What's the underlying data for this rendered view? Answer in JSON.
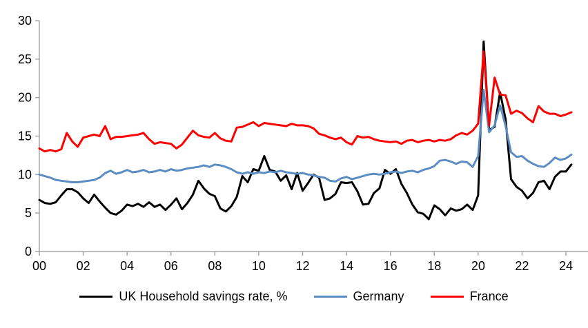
{
  "chart_data": {
    "type": "line",
    "title": "",
    "xlabel": "",
    "ylabel": "",
    "ylim": [
      0,
      30
    ],
    "y_ticks": [
      0,
      5,
      10,
      15,
      20,
      25,
      30
    ],
    "y_tick_labels": [
      "0",
      "5",
      "10",
      "15",
      "20",
      "25",
      "30"
    ],
    "x_tick_labels": [
      "00",
      "02",
      "04",
      "06",
      "08",
      "10",
      "12",
      "14",
      "16",
      "18",
      "20",
      "22",
      "24"
    ],
    "x_tick_step_years": 2,
    "x_start_year": 2000,
    "points_per_year": 4,
    "grid": "off",
    "legend_position": "bottom",
    "axis_color": "#a6a6a6",
    "text_color": "#000000",
    "series": [
      {
        "name": "UK Household savings rate, %",
        "color": "#000000",
        "values": [
          6.7,
          6.3,
          6.2,
          6.4,
          7.3,
          8.1,
          8.1,
          7.7,
          6.9,
          6.3,
          7.4,
          6.5,
          5.7,
          5.0,
          4.8,
          5.3,
          6.1,
          5.9,
          6.2,
          5.8,
          6.4,
          5.8,
          6.1,
          5.4,
          6.1,
          6.9,
          5.5,
          6.3,
          7.4,
          9.2,
          8.2,
          7.5,
          7.2,
          5.6,
          5.2,
          5.9,
          7.1,
          9.8,
          9.0,
          10.7,
          10.5,
          12.4,
          10.6,
          10.4,
          9.2,
          9.9,
          8.1,
          10.2,
          7.9,
          8.9,
          10.0,
          9.6,
          6.7,
          6.9,
          7.5,
          9.0,
          8.9,
          9.0,
          7.8,
          6.1,
          6.2,
          7.6,
          8.2,
          10.6,
          10.1,
          10.7,
          8.8,
          7.6,
          6.1,
          5.1,
          4.9,
          4.2,
          6.0,
          5.5,
          4.7,
          5.6,
          5.3,
          5.5,
          6.1,
          5.4,
          7.3,
          27.3,
          15.8,
          16.2,
          20.7,
          17.2,
          9.4,
          8.4,
          7.9,
          6.9,
          7.6,
          9.0,
          9.2,
          8.1,
          9.7,
          10.4,
          10.4,
          11.3
        ]
      },
      {
        "name": "Germany",
        "color": "#5b8dc3",
        "values": [
          10.0,
          9.8,
          9.6,
          9.3,
          9.2,
          9.1,
          9.0,
          9.0,
          9.1,
          9.2,
          9.3,
          9.6,
          10.2,
          10.5,
          10.1,
          10.3,
          10.6,
          10.3,
          10.4,
          10.6,
          10.3,
          10.4,
          10.6,
          10.4,
          10.7,
          10.5,
          10.6,
          10.8,
          10.9,
          11.0,
          11.2,
          11.0,
          11.3,
          11.2,
          11.0,
          10.7,
          10.3,
          10.1,
          10.3,
          10.1,
          10.3,
          10.2,
          10.4,
          10.3,
          10.5,
          10.3,
          10.2,
          10.1,
          10.2,
          10.0,
          9.9,
          9.7,
          9.6,
          9.2,
          9.1,
          9.5,
          9.7,
          9.4,
          9.6,
          9.8,
          10.0,
          10.1,
          10.0,
          10.1,
          10.3,
          10.4,
          10.2,
          10.4,
          10.5,
          10.3,
          10.6,
          10.8,
          11.1,
          11.8,
          11.9,
          11.7,
          11.4,
          11.7,
          11.6,
          11.0,
          12.4,
          21.0,
          15.5,
          16.4,
          19.0,
          16.3,
          12.9,
          12.3,
          12.4,
          11.8,
          11.4,
          11.1,
          11.0,
          11.5,
          12.2,
          11.9,
          12.1,
          12.6
        ]
      },
      {
        "name": "France",
        "color": "#ff0000",
        "values": [
          13.4,
          13.0,
          13.2,
          13.0,
          13.3,
          15.4,
          14.3,
          13.6,
          14.8,
          15.0,
          15.2,
          15.0,
          16.3,
          14.6,
          14.9,
          14.9,
          15.0,
          15.1,
          15.2,
          15.4,
          14.6,
          14.0,
          14.2,
          14.1,
          14.0,
          13.4,
          13.9,
          14.8,
          15.7,
          15.1,
          14.9,
          14.8,
          15.4,
          14.7,
          14.4,
          14.3,
          16.1,
          16.2,
          16.5,
          16.8,
          16.3,
          16.7,
          16.6,
          16.5,
          16.4,
          16.3,
          16.6,
          16.4,
          16.4,
          16.3,
          16.0,
          15.3,
          15.1,
          14.8,
          14.6,
          14.8,
          14.2,
          13.9,
          15.0,
          14.8,
          14.9,
          14.6,
          14.4,
          14.3,
          14.2,
          14.3,
          14.0,
          14.4,
          14.5,
          14.2,
          14.4,
          14.5,
          14.3,
          14.5,
          14.4,
          14.6,
          15.1,
          15.4,
          15.2,
          15.7,
          16.6,
          26.0,
          16.4,
          22.6,
          20.4,
          20.3,
          17.9,
          18.3,
          18.0,
          17.3,
          16.8,
          18.9,
          18.2,
          17.9,
          17.9,
          17.6,
          17.8,
          18.1
        ]
      }
    ]
  }
}
